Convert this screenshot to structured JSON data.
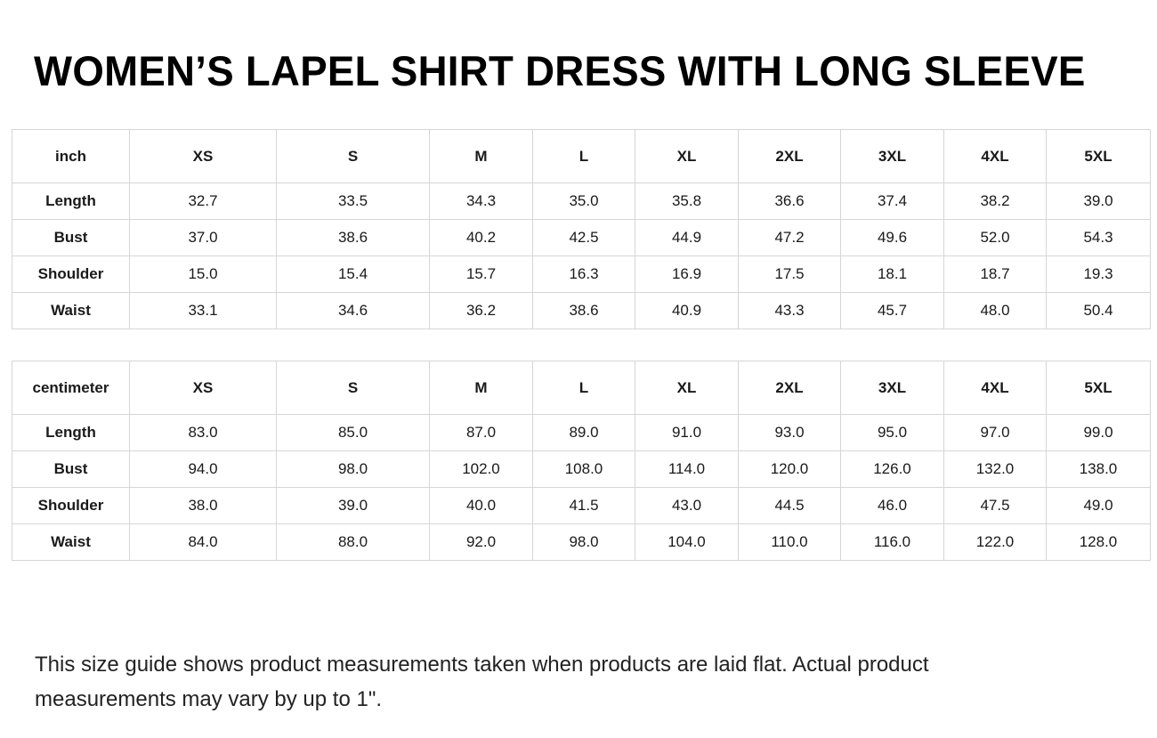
{
  "title": "WOMEN’S LAPEL SHIRT DRESS WITH LONG SLEEVE",
  "tables": [
    {
      "unit": "inch",
      "sizes": [
        "XS",
        "S",
        "M",
        "L",
        "XL",
        "2XL",
        "3XL",
        "4XL",
        "5XL"
      ],
      "rows": [
        {
          "label": "Length",
          "values": [
            "32.7",
            "33.5",
            "34.3",
            "35.0",
            "35.8",
            "36.6",
            "37.4",
            "38.2",
            "39.0"
          ]
        },
        {
          "label": "Bust",
          "values": [
            "37.0",
            "38.6",
            "40.2",
            "42.5",
            "44.9",
            "47.2",
            "49.6",
            "52.0",
            "54.3"
          ]
        },
        {
          "label": "Shoulder",
          "values": [
            "15.0",
            "15.4",
            "15.7",
            "16.3",
            "16.9",
            "17.5",
            "18.1",
            "18.7",
            "19.3"
          ]
        },
        {
          "label": "Waist",
          "values": [
            "33.1",
            "34.6",
            "36.2",
            "38.6",
            "40.9",
            "43.3",
            "45.7",
            "48.0",
            "50.4"
          ]
        }
      ]
    },
    {
      "unit": "centimeter",
      "sizes": [
        "XS",
        "S",
        "M",
        "L",
        "XL",
        "2XL",
        "3XL",
        "4XL",
        "5XL"
      ],
      "rows": [
        {
          "label": "Length",
          "values": [
            "83.0",
            "85.0",
            "87.0",
            "89.0",
            "91.0",
            "93.0",
            "95.0",
            "97.0",
            "99.0"
          ]
        },
        {
          "label": "Bust",
          "values": [
            "94.0",
            "98.0",
            "102.0",
            "108.0",
            "114.0",
            "120.0",
            "126.0",
            "132.0",
            "138.0"
          ]
        },
        {
          "label": "Shoulder",
          "values": [
            "38.0",
            "39.0",
            "40.0",
            "41.5",
            "43.0",
            "44.5",
            "46.0",
            "47.5",
            "49.0"
          ]
        },
        {
          "label": "Waist",
          "values": [
            "84.0",
            "88.0",
            "92.0",
            "98.0",
            "104.0",
            "110.0",
            "116.0",
            "122.0",
            "128.0"
          ]
        }
      ]
    }
  ],
  "note": "This size guide shows product measurements taken when products are laid flat. Actual product measurements may vary by up to 1\"."
}
